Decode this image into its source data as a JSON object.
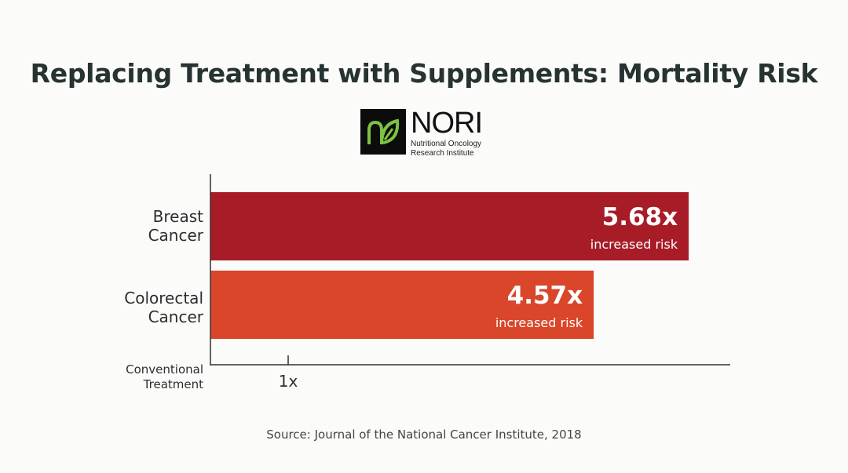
{
  "title": "Replacing Treatment with Supplements: Mortality Risk",
  "logo": {
    "name": "NORI",
    "subtitle_line1": "Nutritional Oncology",
    "subtitle_line2": "Research Institute"
  },
  "chart_data": {
    "type": "bar",
    "orientation": "horizontal",
    "title": "Replacing Treatment with Supplements: Mortality Risk",
    "categories": [
      "Breast Cancer",
      "Colorectal Cancer"
    ],
    "values": [
      5.68,
      4.57
    ],
    "value_labels": [
      "5.68x",
      "4.57x"
    ],
    "value_sublabel": "increased risk",
    "colors": [
      "#a81c28",
      "#d9462a"
    ],
    "baseline_label": "Conventional Treatment",
    "x_ticks": [
      {
        "value": 1,
        "label": "1x"
      }
    ]
  },
  "category_lines": [
    [
      "Breast",
      "Cancer"
    ],
    [
      "Colorectal",
      "Cancer"
    ]
  ],
  "baseline_lines": [
    "Conventional",
    "Treatment"
  ],
  "source": "Source: Journal of the National Cancer Institute, 2018"
}
